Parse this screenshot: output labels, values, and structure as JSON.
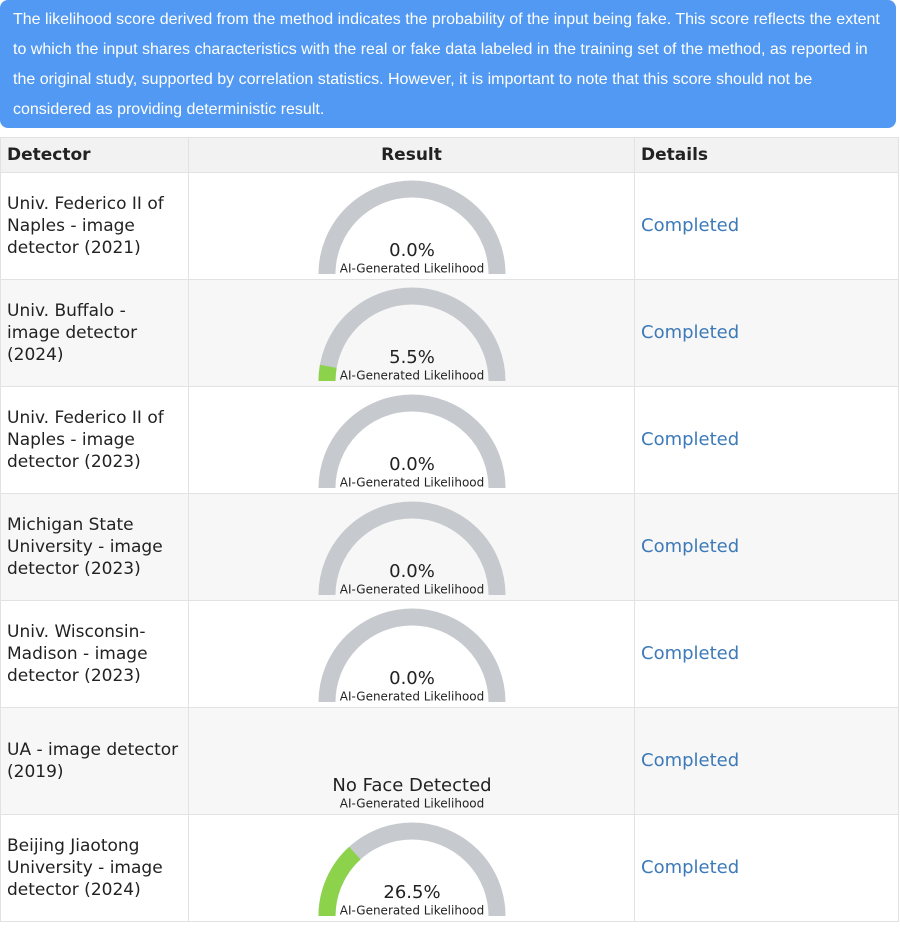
{
  "notice": "The likelihood score derived from the method indicates the probability of the input being fake. This score reflects the extent to which the input shares characteristics with the real or fake data labeled in the training set of the method, as reported in the original study, supported by correlation statistics. However, it is important to note that this score should not be considered as providing deterministic result.",
  "table": {
    "headers": [
      "Detector",
      "Result",
      "Details"
    ],
    "gauge_range": [
      0,
      100
    ],
    "rows": [
      {
        "detector": "Univ. Federico II of Naples - image detector (2021)",
        "value": 0.0,
        "value_label": "0.0%",
        "caption": "AI-Generated Likelihood",
        "details": "Completed"
      },
      {
        "detector": "Univ. Buffalo - image detector (2024)",
        "value": 5.5,
        "value_label": "5.5%",
        "caption": "AI-Generated Likelihood",
        "details": "Completed"
      },
      {
        "detector": "Univ. Federico II of Naples - image detector (2023)",
        "value": 0.0,
        "value_label": "0.0%",
        "caption": "AI-Generated Likelihood",
        "details": "Completed"
      },
      {
        "detector": "Michigan State University - image detector (2023)",
        "value": 0.0,
        "value_label": "0.0%",
        "caption": "AI-Generated Likelihood",
        "details": "Completed"
      },
      {
        "detector": "Univ. Wisconsin-Madison - image detector (2023)",
        "value": 0.0,
        "value_label": "0.0%",
        "caption": "AI-Generated Likelihood",
        "details": "Completed"
      },
      {
        "detector": "UA - image detector (2019)",
        "value": null,
        "value_label": "No Face Detected",
        "caption": "AI-Generated Likelihood",
        "details": "Completed"
      },
      {
        "detector": "Beijing Jiaotong University - image detector (2024)",
        "value": 26.5,
        "value_label": "26.5%",
        "caption": "AI-Generated Likelihood",
        "details": "Completed"
      }
    ]
  }
}
